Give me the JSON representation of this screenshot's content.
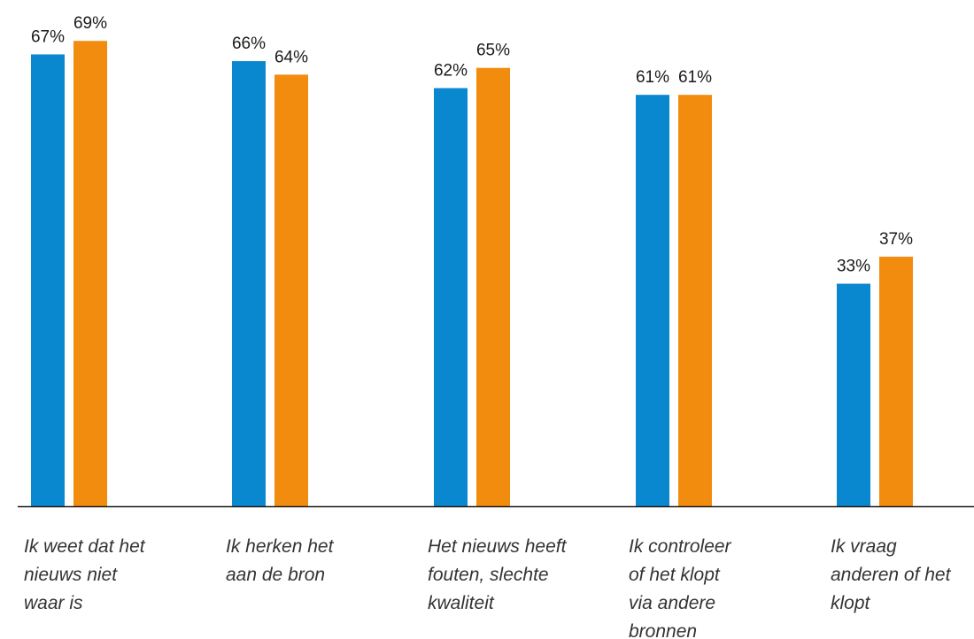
{
  "chart_data": {
    "type": "bar",
    "categories": [
      [
        "Ik weet dat het",
        "nieuws niet",
        "waar is"
      ],
      [
        "Ik herken het",
        "aan de bron"
      ],
      [
        "Het nieuws heeft",
        "fouten, slechte",
        "kwaliteit"
      ],
      [
        "Ik controleer",
        "of het klopt",
        "via andere",
        "bronnen"
      ],
      [
        "Ik vraag",
        "anderen of het",
        "klopt"
      ]
    ],
    "series": [
      {
        "values": [
          67,
          66,
          62,
          61,
          33
        ],
        "labels": [
          "67%",
          "66%",
          "62%",
          "61%",
          "33%"
        ],
        "color": "#0A88CF"
      },
      {
        "values": [
          69,
          64,
          65,
          61,
          37
        ],
        "labels": [
          "69%",
          "64%",
          "65%",
          "61%",
          "37%"
        ],
        "color": "#F28C0F"
      }
    ],
    "ylim": [
      0,
      100
    ],
    "grid": false,
    "legend": "none",
    "axis_color": "#1a1a1a"
  }
}
